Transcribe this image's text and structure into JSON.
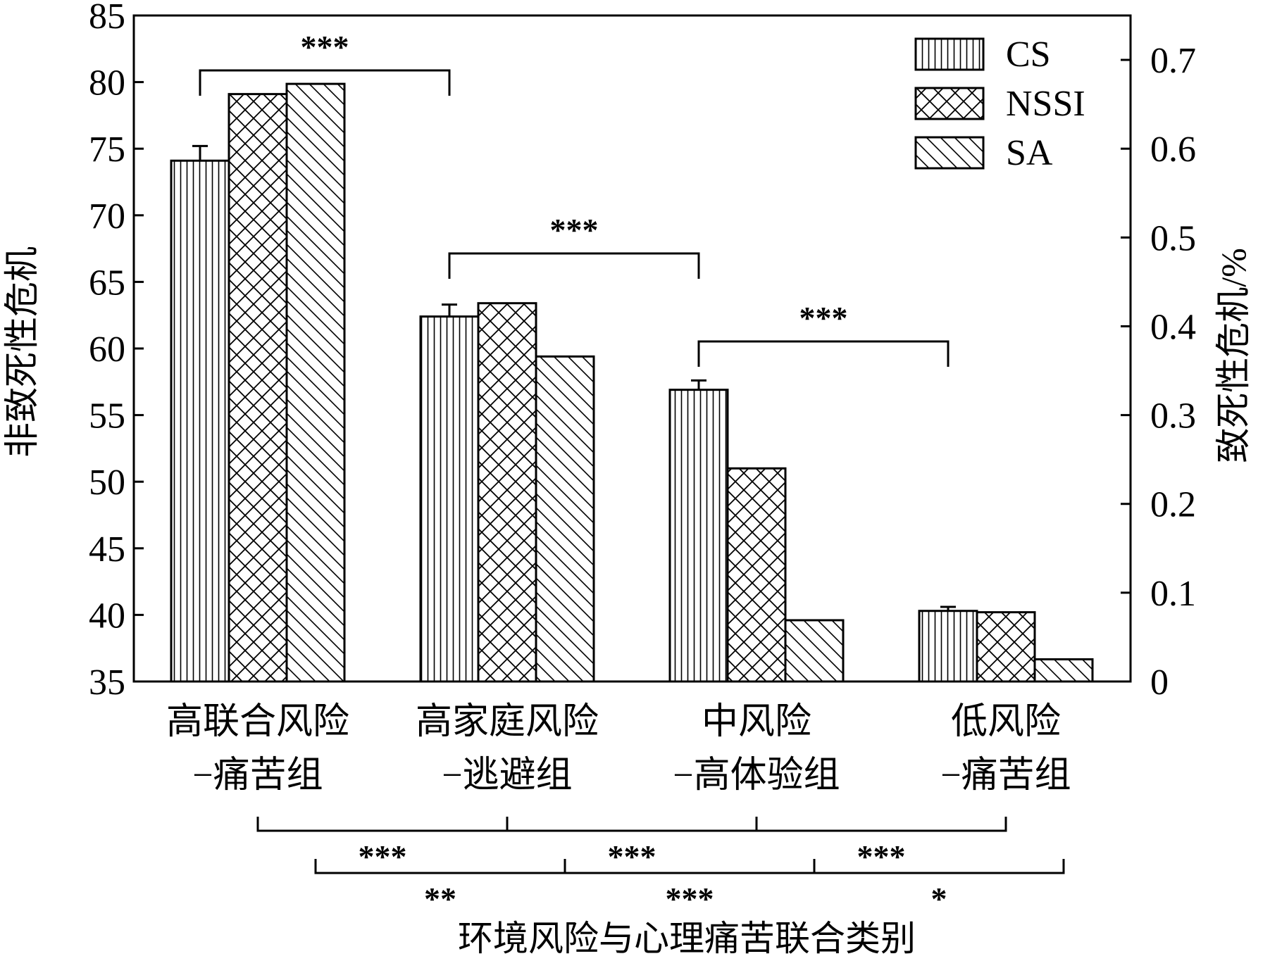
{
  "chart_data": {
    "type": "bar",
    "title": "",
    "xlabel": "环境风险与心理痛苦联合类别",
    "ylabel_left": "非致死性危机",
    "ylabel_right": "致死性危机/%",
    "ylim_left": [
      35,
      85
    ],
    "ylim_right": [
      0,
      0.75
    ],
    "yticks_left": [
      35,
      40,
      45,
      50,
      55,
      60,
      65,
      70,
      75,
      80,
      85
    ],
    "yticks_right": [
      0,
      0.1,
      0.2,
      0.3,
      0.4,
      0.5,
      0.6,
      0.7
    ],
    "ytick_labels_left": [
      "35",
      "40",
      "45",
      "50",
      "55",
      "60",
      "65",
      "70",
      "75",
      "80",
      "85"
    ],
    "ytick_labels_right": [
      "0",
      "0.1",
      "0.2",
      "0.3",
      "0.4",
      "0.5",
      "0.6",
      "0.7"
    ],
    "categories": [
      [
        "高联合风险",
        "−痛苦组"
      ],
      [
        "高家庭风险",
        "−逃避组"
      ],
      [
        "中风险",
        "−高体验组"
      ],
      [
        "低风险",
        "−痛苦组"
      ]
    ],
    "series": [
      {
        "name": "CS",
        "axis": "left",
        "pattern": "vertical",
        "values": [
          74.1,
          62.4,
          56.9,
          40.3
        ],
        "errors": [
          1.1,
          0.9,
          0.7,
          0.3
        ]
      },
      {
        "name": "NSSI",
        "axis": "left",
        "pattern": "crosshatch",
        "values": [
          79.1,
          63.4,
          51.0,
          40.2
        ],
        "errors": [
          0,
          0,
          0,
          0
        ]
      },
      {
        "name": "SA",
        "axis": "right",
        "pattern": "diagonal",
        "values": [
          0.673,
          0.366,
          0.069,
          0.025
        ],
        "errors": [
          0,
          0,
          0,
          0
        ]
      }
    ],
    "legend": {
      "position": "top-right",
      "entries": [
        "CS",
        "NSSI",
        "SA"
      ]
    },
    "grid": false,
    "annotations": {
      "top_brackets": [
        {
          "from_category": 0,
          "to_category": 1,
          "label": "***"
        },
        {
          "from_category": 1,
          "to_category": 2,
          "label": "***"
        },
        {
          "from_category": 2,
          "to_category": 3,
          "label": "***"
        }
      ],
      "bottom_brackets": [
        {
          "from_category": 0,
          "to_category": 1,
          "series": "NSSI",
          "label": "***"
        },
        {
          "from_category": 1,
          "to_category": 2,
          "series": "NSSI",
          "label": "***"
        },
        {
          "from_category": 2,
          "to_category": 3,
          "series": "NSSI",
          "label": "***"
        },
        {
          "from_category": 0,
          "to_category": 1,
          "series": "SA",
          "label": "**"
        },
        {
          "from_category": 1,
          "to_category": 2,
          "series": "SA",
          "label": "***"
        },
        {
          "from_category": 2,
          "to_category": 3,
          "series": "SA",
          "label": "*"
        }
      ]
    }
  }
}
